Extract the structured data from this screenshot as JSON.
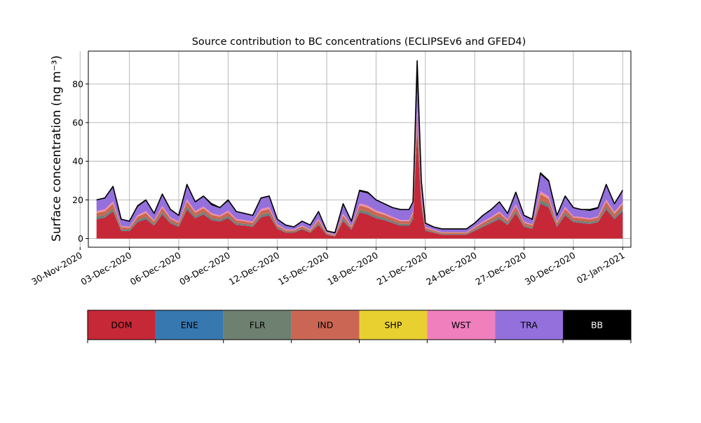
{
  "chart_data": {
    "type": "area",
    "title": "Source contribution to BC concentrations (ECLIPSEv6 and GFED4)",
    "xlabel": "",
    "ylabel": "Surface concentration (ng m⁻³)",
    "xlim": [
      "2020-11-30T12:00",
      "2021-01-02T12:00"
    ],
    "ylim": [
      -4.5,
      97
    ],
    "yticks": [
      0,
      20,
      40,
      60,
      80
    ],
    "xticks": [
      "2020-11-30",
      "2020-12-03",
      "2020-12-06",
      "2020-12-09",
      "2020-12-12",
      "2020-12-15",
      "2020-12-18",
      "2020-12-21",
      "2020-12-24",
      "2020-12-27",
      "2020-12-30",
      "2021-01-02"
    ],
    "xtick_labels": [
      "30-Nov-2020",
      "03-Dec-2020",
      "06-Dec-2020",
      "09-Dec-2020",
      "12-Dec-2020",
      "15-Dec-2020",
      "18-Dec-2020",
      "21-Dec-2020",
      "24-Dec-2020",
      "27-Dec-2020",
      "30-Dec-2020",
      "02-Jan-2021"
    ],
    "grid": true,
    "x_dates": [
      "2020-12-01T00:00",
      "2020-12-01T12:00",
      "2020-12-02T00:00",
      "2020-12-02T12:00",
      "2020-12-03T00:00",
      "2020-12-03T12:00",
      "2020-12-04T00:00",
      "2020-12-04T12:00",
      "2020-12-05T00:00",
      "2020-12-05T12:00",
      "2020-12-06T00:00",
      "2020-12-06T12:00",
      "2020-12-07T00:00",
      "2020-12-07T12:00",
      "2020-12-08T00:00",
      "2020-12-08T12:00",
      "2020-12-09T00:00",
      "2020-12-09T12:00",
      "2020-12-10T00:00",
      "2020-12-10T12:00",
      "2020-12-11T00:00",
      "2020-12-11T12:00",
      "2020-12-12T00:00",
      "2020-12-12T12:00",
      "2020-12-13T00:00",
      "2020-12-13T12:00",
      "2020-12-14T00:00",
      "2020-12-14T12:00",
      "2020-12-15T00:00",
      "2020-12-15T12:00",
      "2020-12-16T00:00",
      "2020-12-16T12:00",
      "2020-12-17T00:00",
      "2020-12-17T12:00",
      "2020-12-18T00:00",
      "2020-12-18T12:00",
      "2020-12-19T00:00",
      "2020-12-19T12:00",
      "2020-12-20T00:00",
      "2020-12-20T06:00",
      "2020-12-20T12:00",
      "2020-12-20T18:00",
      "2020-12-21T00:00",
      "2020-12-21T12:00",
      "2020-12-22T00:00",
      "2020-12-22T12:00",
      "2020-12-23T00:00",
      "2020-12-23T12:00",
      "2020-12-24T00:00",
      "2020-12-24T12:00",
      "2020-12-25T00:00",
      "2020-12-25T12:00",
      "2020-12-26T00:00",
      "2020-12-26T12:00",
      "2020-12-27T00:00",
      "2020-12-27T12:00",
      "2020-12-28T00:00",
      "2020-12-28T12:00",
      "2020-12-29T00:00",
      "2020-12-29T12:00",
      "2020-12-30T00:00",
      "2020-12-30T12:00",
      "2020-12-31T00:00",
      "2020-12-31T12:00",
      "2021-01-01T00:00",
      "2021-01-01T12:00",
      "2021-01-02T00:00"
    ],
    "total": [
      20,
      21,
      27,
      10,
      9,
      17,
      20,
      13,
      23,
      15,
      12,
      28,
      19,
      22,
      18,
      16,
      20,
      14,
      13,
      12,
      21,
      22,
      10,
      7,
      6,
      9,
      7,
      14,
      4,
      3,
      18,
      9,
      25,
      24,
      20,
      18,
      16,
      15,
      15,
      19,
      92,
      30,
      8,
      6,
      5,
      5,
      5,
      5,
      8,
      12,
      15,
      19,
      13,
      24,
      12,
      10,
      34,
      30,
      12,
      22,
      16,
      15,
      15,
      16,
      28,
      18,
      25
    ],
    "series": [
      {
        "name": "DOM",
        "color": "#c62837",
        "values": [
          10,
          11,
          14,
          4,
          4,
          9,
          10,
          7,
          13,
          8,
          6,
          15,
          11,
          13,
          10,
          9,
          11,
          7,
          7,
          6,
          11,
          12,
          5,
          3,
          3,
          5,
          3,
          7,
          2,
          1,
          9,
          5,
          14,
          13,
          11,
          10,
          8,
          7,
          7,
          10,
          55,
          17,
          4,
          3,
          2,
          2,
          2,
          2,
          4,
          6,
          8,
          10,
          7,
          13,
          6,
          5,
          18,
          16,
          6,
          12,
          9,
          8,
          8,
          9,
          15,
          10,
          14
        ]
      },
      {
        "name": "ENE",
        "color": "#3878b0",
        "values": [
          0.3,
          0.3,
          0.3,
          0.2,
          0.2,
          0.3,
          0.3,
          0.2,
          0.3,
          0.2,
          0.2,
          0.3,
          0.3,
          0.3,
          0.3,
          0.2,
          0.3,
          0.2,
          0.2,
          0.2,
          0.3,
          0.3,
          0.2,
          0.1,
          0.1,
          0.2,
          0.1,
          0.2,
          0.1,
          0.1,
          0.3,
          0.2,
          0.3,
          0.3,
          0.3,
          0.3,
          0.2,
          0.2,
          0.2,
          0.3,
          0.5,
          0.3,
          0.2,
          0.1,
          0.1,
          0.1,
          0.1,
          0.1,
          0.2,
          0.2,
          0.2,
          0.3,
          0.2,
          0.3,
          0.2,
          0.2,
          0.4,
          0.4,
          0.2,
          0.3,
          0.2,
          0.2,
          0.2,
          0.2,
          0.3,
          0.2,
          0.3
        ]
      },
      {
        "name": "FLR",
        "color": "#6e8070",
        "values": [
          1.0,
          1.0,
          1.2,
          0.6,
          0.6,
          0.9,
          1.0,
          0.7,
          1.1,
          0.8,
          0.7,
          1.3,
          0.9,
          1.0,
          0.9,
          0.8,
          1.0,
          0.8,
          0.7,
          0.7,
          1.0,
          1.0,
          0.6,
          0.4,
          0.4,
          0.5,
          0.4,
          0.8,
          0.3,
          0.2,
          0.9,
          0.5,
          1.2,
          1.1,
          1.0,
          0.9,
          0.8,
          0.8,
          0.8,
          1.0,
          3.0,
          1.5,
          0.5,
          0.4,
          0.3,
          0.3,
          0.3,
          0.3,
          0.5,
          0.7,
          0.8,
          1.0,
          0.7,
          1.1,
          0.7,
          0.6,
          1.5,
          1.3,
          0.7,
          1.0,
          0.8,
          0.8,
          0.8,
          0.8,
          1.2,
          0.9,
          1.1
        ]
      },
      {
        "name": "IND",
        "color": "#cb6655",
        "values": [
          2.0,
          2.2,
          2.6,
          1.2,
          1.1,
          1.8,
          2.0,
          1.4,
          2.2,
          1.5,
          1.3,
          2.6,
          1.9,
          2.1,
          1.8,
          1.6,
          2.0,
          1.5,
          1.4,
          1.3,
          2.0,
          2.1,
          1.1,
          0.8,
          0.7,
          1.0,
          0.8,
          1.5,
          0.5,
          0.4,
          1.8,
          1.0,
          2.4,
          2.3,
          2.0,
          1.8,
          1.6,
          1.5,
          1.5,
          1.9,
          7.0,
          2.8,
          0.9,
          0.7,
          0.6,
          0.6,
          0.6,
          0.6,
          0.9,
          1.3,
          1.5,
          1.9,
          1.4,
          2.3,
          1.3,
          1.1,
          3.2,
          2.8,
          1.3,
          2.1,
          1.6,
          1.5,
          1.5,
          1.6,
          2.6,
          1.8,
          2.4
        ]
      },
      {
        "name": "SHP",
        "color": "#e8d030",
        "values": [
          0.2,
          0.2,
          0.2,
          0.1,
          0.1,
          0.2,
          0.2,
          0.1,
          0.2,
          0.1,
          0.1,
          0.2,
          0.2,
          0.2,
          0.2,
          0.1,
          0.2,
          0.1,
          0.1,
          0.1,
          0.2,
          0.2,
          0.1,
          0.1,
          0.1,
          0.1,
          0.1,
          0.1,
          0.1,
          0.1,
          0.2,
          0.1,
          0.2,
          0.2,
          0.2,
          0.2,
          0.1,
          0.1,
          0.1,
          0.2,
          0.4,
          0.2,
          0.1,
          0.1,
          0.1,
          0.1,
          0.1,
          0.1,
          0.1,
          0.1,
          0.1,
          0.2,
          0.1,
          0.2,
          0.1,
          0.1,
          0.3,
          0.3,
          0.1,
          0.2,
          0.1,
          0.1,
          0.1,
          0.1,
          0.2,
          0.2,
          0.2
        ]
      },
      {
        "name": "WST",
        "color": "#f07fbe",
        "values": [
          0.8,
          0.8,
          1.0,
          0.5,
          0.4,
          0.7,
          0.8,
          0.5,
          0.9,
          0.6,
          0.5,
          1.0,
          0.7,
          0.8,
          0.7,
          0.6,
          0.8,
          0.6,
          0.5,
          0.5,
          0.8,
          0.8,
          0.4,
          0.3,
          0.3,
          0.4,
          0.3,
          0.6,
          0.2,
          0.2,
          0.7,
          0.4,
          0.9,
          0.9,
          0.8,
          0.7,
          0.6,
          0.6,
          0.6,
          0.7,
          2.5,
          1.1,
          0.4,
          0.3,
          0.2,
          0.2,
          0.2,
          0.2,
          0.4,
          0.5,
          0.6,
          0.7,
          0.5,
          0.9,
          0.5,
          0.4,
          1.2,
          1.1,
          0.5,
          0.8,
          0.6,
          0.6,
          0.6,
          0.6,
          1.0,
          0.7,
          0.9
        ]
      },
      {
        "name": "TRA",
        "color": "#9370db",
        "values": [
          5.5,
          5.8,
          7.0,
          3.2,
          2.8,
          4.5,
          5.2,
          3.4,
          5.9,
          3.9,
          3.0,
          7.3,
          4.7,
          5.2,
          4.2,
          3.9,
          5.0,
          3.6,
          3.4,
          3.0,
          5.5,
          5.5,
          2.4,
          2.0,
          1.3,
          2.1,
          2.1,
          3.5,
          0.7,
          0.8,
          4.7,
          2.6,
          6.3,
          6.5,
          5.5,
          4.9,
          4.5,
          5.6,
          5.6,
          4.7,
          12.0,
          6.5,
          1.7,
          1.3,
          1.6,
          1.6,
          1.6,
          1.6,
          1.8,
          3.0,
          3.6,
          4.8,
          3.0,
          6.0,
          3.1,
          2.5,
          8.6,
          7.4,
          3.1,
          5.4,
          4.5,
          3.7,
          4.0,
          4.1,
          7.5,
          4.1,
          5.9
        ]
      },
      {
        "name": "BB",
        "color": "#000000",
        "values": [
          0.2,
          0.2,
          0.7,
          0.2,
          0.3,
          0.6,
          0.5,
          0.3,
          0.4,
          0.3,
          0.2,
          0.3,
          0.3,
          0.4,
          0.9,
          0.2,
          0.7,
          0.2,
          0.2,
          0.2,
          0.2,
          0.1,
          0.2,
          0.3,
          0.1,
          0.2,
          0.2,
          0.3,
          0.1,
          0.2,
          0.4,
          0.2,
          0.7,
          0.7,
          0.2,
          0.2,
          0.2,
          0.2,
          0.2,
          0.2,
          11.6,
          0.6,
          0.2,
          0.1,
          0.1,
          0.1,
          0.1,
          0.1,
          0.1,
          0.2,
          0.2,
          0.1,
          0.1,
          0.2,
          0.1,
          0.1,
          0.8,
          0.7,
          0.1,
          0.2,
          0.2,
          0.1,
          0.8,
          0.6,
          0.2,
          0.1,
          0.2
        ]
      }
    ]
  }
}
